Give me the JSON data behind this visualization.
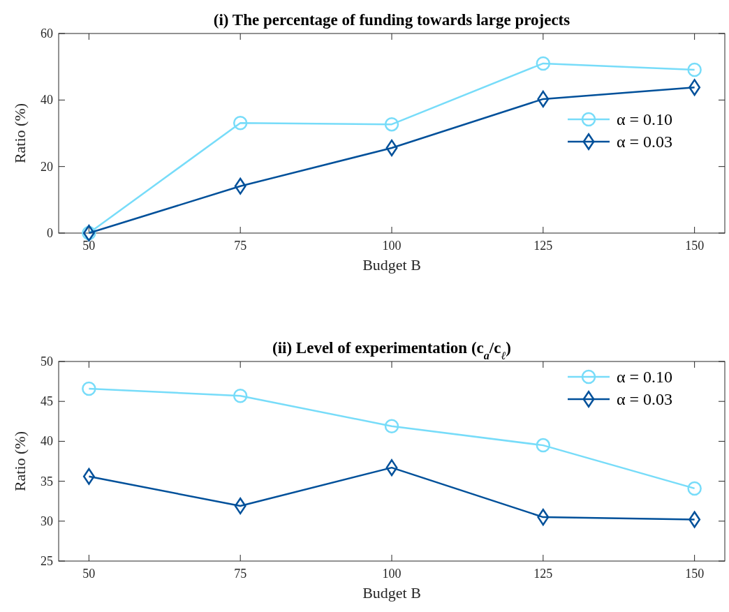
{
  "chart_data": [
    {
      "type": "line",
      "title": "(i) The percentage of funding towards large projects",
      "xlabel": "Budget B",
      "ylabel": "Ratio (%)",
      "x": [
        50,
        75,
        100,
        125,
        150
      ],
      "xlim": [
        45,
        155
      ],
      "xticks": [
        50,
        75,
        100,
        125,
        150
      ],
      "ylim": [
        0,
        60
      ],
      "yticks": [
        0,
        20,
        40,
        60
      ],
      "legend": "right",
      "grid": false,
      "series": [
        {
          "name": "α = 0.10",
          "color": "#77dcf9",
          "marker": "circle",
          "values": [
            0,
            33.1,
            32.7,
            51.0,
            49.1
          ]
        },
        {
          "name": "α = 0.03",
          "color": "#00509a",
          "marker": "diamond",
          "values": [
            0,
            14.1,
            25.6,
            40.3,
            43.8
          ]
        }
      ]
    },
    {
      "type": "line",
      "title": "(ii) Level of experimentation (c$_{a}$/c$_{ℓ}$)",
      "xlabel": "Budget B",
      "ylabel": "Ratio (%)",
      "x": [
        50,
        75,
        100,
        125,
        150
      ],
      "xlim": [
        45,
        155
      ],
      "xticks": [
        50,
        75,
        100,
        125,
        150
      ],
      "ylim": [
        25,
        50
      ],
      "yticks": [
        25,
        30,
        35,
        40,
        45,
        50
      ],
      "legend": "top right",
      "grid": false,
      "series": [
        {
          "name": "α = 0.10",
          "color": "#77dcf9",
          "marker": "circle",
          "values": [
            46.6,
            45.7,
            41.9,
            39.5,
            34.1
          ]
        },
        {
          "name": "α = 0.03",
          "color": "#00509a",
          "marker": "diamond",
          "values": [
            35.6,
            31.9,
            36.7,
            30.5,
            30.2
          ]
        }
      ]
    }
  ]
}
